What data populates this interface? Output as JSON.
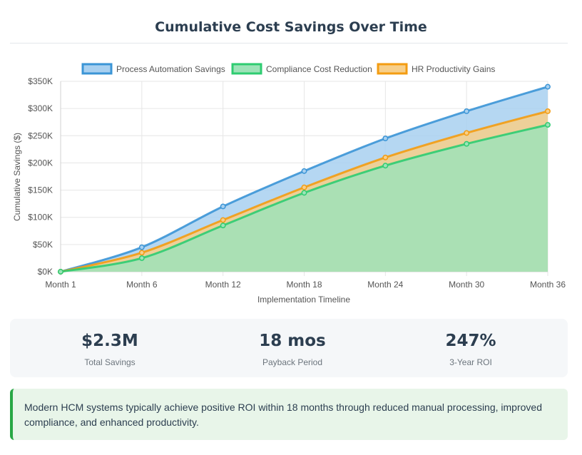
{
  "page": {
    "title": "Cumulative Cost Savings Over Time"
  },
  "chart_data": {
    "type": "area",
    "title": "",
    "xlabel": "Implementation Timeline",
    "ylabel": "Cumulative Savings ($)",
    "categories": [
      "Month 1",
      "Month 6",
      "Month 12",
      "Month 18",
      "Month 24",
      "Month 30",
      "Month 36"
    ],
    "ylim": [
      0,
      350000
    ],
    "yticks": [
      0,
      50000,
      100000,
      150000,
      200000,
      250000,
      300000,
      350000
    ],
    "ytick_labels": [
      "$0K",
      "$50K",
      "$100K",
      "$150K",
      "$200K",
      "$250K",
      "$300K",
      "$350K"
    ],
    "grid": true,
    "legend_position": "top",
    "series": [
      {
        "name": "Process Automation Savings",
        "values": [
          0,
          45000,
          120000,
          185000,
          245000,
          295000,
          340000
        ],
        "color": "#3b95d6",
        "fill": "#a8d0f0"
      },
      {
        "name": "Compliance Cost Reduction",
        "values": [
          0,
          25000,
          85000,
          145000,
          195000,
          235000,
          270000
        ],
        "color": "#2ecc71",
        "fill": "#9de3b8"
      },
      {
        "name": "HR Productivity Gains",
        "values": [
          0,
          35000,
          95000,
          155000,
          210000,
          255000,
          295000
        ],
        "color": "#f39c12",
        "fill": "#f7cf8a"
      }
    ]
  },
  "stats": [
    {
      "value": "$2.3M",
      "label": "Total Savings"
    },
    {
      "value": "18 mos",
      "label": "Payback Period"
    },
    {
      "value": "247%",
      "label": "3-Year ROI"
    }
  ],
  "note": {
    "text": "Modern HCM systems typically achieve positive ROI within 18 months through reduced manual processing, improved compliance, and enhanced productivity."
  }
}
